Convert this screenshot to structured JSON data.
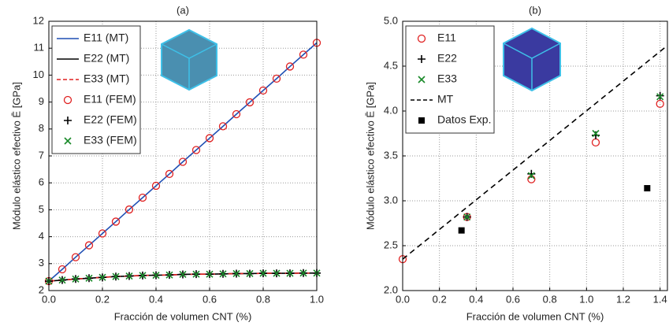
{
  "chart_data": [
    {
      "type": "line",
      "title": "(a)",
      "xlabel": "Fracción de volumen CNT (%)",
      "ylabel": "Módulo elástico efectivo Ē [GPa]",
      "xlim": [
        0,
        1
      ],
      "ylim": [
        2,
        12
      ],
      "xticks": [
        {
          "value": 0,
          "label": "0.0"
        },
        {
          "value": 0.2,
          "label": "0.2"
        },
        {
          "value": 0.4,
          "label": "0.4"
        },
        {
          "value": 0.6,
          "label": "0.6"
        },
        {
          "value": 0.8,
          "label": "0.8"
        },
        {
          "value": 1,
          "label": "1.0"
        }
      ],
      "yticks": [
        2,
        3,
        4,
        5,
        6,
        7,
        8,
        9,
        10,
        11,
        12
      ],
      "grid": true,
      "legend": "upper left",
      "x": [
        0,
        0.05,
        0.1,
        0.15,
        0.2,
        0.25,
        0.3,
        0.35,
        0.4,
        0.45,
        0.5,
        0.55,
        0.6,
        0.65,
        0.7,
        0.75,
        0.8,
        0.85,
        0.9,
        0.95,
        1
      ],
      "series": [
        {
          "name": "E11 (MT)",
          "color": "#1f4fb4",
          "style": "solid",
          "values": [
            2.35,
            2.79,
            3.24,
            3.68,
            4.12,
            4.56,
            5.01,
            5.45,
            5.89,
            6.33,
            6.78,
            7.22,
            7.66,
            8.1,
            8.55,
            8.99,
            9.43,
            9.87,
            10.32,
            10.76,
            11.2
          ]
        },
        {
          "name": "E22 (MT)",
          "color": "#000000",
          "style": "solid",
          "values": [
            2.35,
            2.39,
            2.43,
            2.46,
            2.49,
            2.52,
            2.54,
            2.56,
            2.57,
            2.58,
            2.6,
            2.61,
            2.61,
            2.62,
            2.63,
            2.63,
            2.64,
            2.64,
            2.64,
            2.65,
            2.65
          ]
        },
        {
          "name": "E33 (MT)",
          "color": "#e02020",
          "style": "dashed",
          "values": [
            2.35,
            2.39,
            2.43,
            2.46,
            2.49,
            2.52,
            2.54,
            2.56,
            2.57,
            2.58,
            2.6,
            2.61,
            2.61,
            2.62,
            2.63,
            2.63,
            2.64,
            2.64,
            2.64,
            2.65,
            2.65
          ]
        },
        {
          "name": "E11 (FEM)",
          "color": "#e02020",
          "marker": "circle",
          "values": [
            2.35,
            2.79,
            3.24,
            3.68,
            4.12,
            4.56,
            5.01,
            5.45,
            5.89,
            6.33,
            6.78,
            7.22,
            7.66,
            8.1,
            8.55,
            8.99,
            9.43,
            9.87,
            10.32,
            10.76,
            11.2
          ]
        },
        {
          "name": "E22 (FEM)",
          "color": "#000000",
          "marker": "plus",
          "values": [
            2.35,
            2.39,
            2.43,
            2.46,
            2.49,
            2.52,
            2.54,
            2.56,
            2.57,
            2.58,
            2.6,
            2.61,
            2.61,
            2.62,
            2.63,
            2.63,
            2.64,
            2.64,
            2.64,
            2.65,
            2.65
          ]
        },
        {
          "name": "E33 (FEM)",
          "color": "#1a8a2a",
          "marker": "x",
          "values": [
            2.35,
            2.39,
            2.43,
            2.46,
            2.49,
            2.52,
            2.54,
            2.56,
            2.57,
            2.58,
            2.6,
            2.61,
            2.61,
            2.62,
            2.63,
            2.63,
            2.64,
            2.64,
            2.64,
            2.65,
            2.65
          ]
        }
      ]
    },
    {
      "type": "line",
      "title": "(b)",
      "xlabel": "Fracción de volumen CNT (%)",
      "ylabel": "Módulo elástico efectivo Ē [GPa]",
      "xlim": [
        0,
        1.44
      ],
      "ylim": [
        2,
        5
      ],
      "xticks": [
        {
          "value": 0,
          "label": "0.0"
        },
        {
          "value": 0.2,
          "label": "0.2"
        },
        {
          "value": 0.4,
          "label": "0.4"
        },
        {
          "value": 0.6,
          "label": "0.6"
        },
        {
          "value": 0.8,
          "label": "0.8"
        },
        {
          "value": 1,
          "label": "1.0"
        },
        {
          "value": 1.2,
          "label": "1.2"
        },
        {
          "value": 1.4,
          "label": "1.4"
        }
      ],
      "yticks": [
        {
          "value": 2,
          "label": "2.0"
        },
        {
          "value": 2.5,
          "label": "2.5"
        },
        {
          "value": 3,
          "label": "3.0"
        },
        {
          "value": 3.5,
          "label": "3.5"
        },
        {
          "value": 4,
          "label": "4.0"
        },
        {
          "value": 4.5,
          "label": "4.5"
        },
        {
          "value": 5,
          "label": "5.0"
        }
      ],
      "grid": true,
      "legend": "upper left",
      "series": [
        {
          "name": "E11",
          "color": "#e02020",
          "marker": "circle",
          "x": [
            0,
            0.35,
            0.7,
            1.05,
            1.4
          ],
          "values": [
            2.35,
            2.82,
            3.24,
            3.65,
            4.08
          ]
        },
        {
          "name": "E22",
          "color": "#000000",
          "marker": "plus",
          "x": [
            0.35,
            0.7,
            1.05,
            1.4
          ],
          "values": [
            2.82,
            3.3,
            3.73,
            4.17
          ]
        },
        {
          "name": "E33",
          "color": "#1a8a2a",
          "marker": "x",
          "x": [
            0.35,
            0.7,
            1.05,
            1.4
          ],
          "values": [
            2.82,
            3.28,
            3.75,
            4.16
          ]
        },
        {
          "name": "MT",
          "color": "#000000",
          "style": "dashed",
          "x": [
            0,
            1.44
          ],
          "values": [
            2.35,
            4.73
          ]
        },
        {
          "name": "Datos Exp.",
          "color": "#000000",
          "marker": "square",
          "x": [
            0.32,
            1.33
          ],
          "values": [
            2.67,
            3.14
          ]
        }
      ]
    }
  ]
}
